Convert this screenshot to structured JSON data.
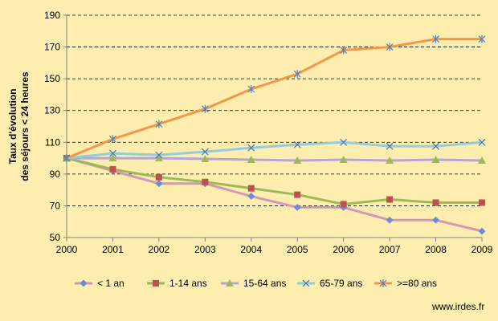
{
  "chart_data": {
    "type": "line",
    "x": [
      "2000",
      "2001",
      "2002",
      "2003",
      "2004",
      "2005",
      "2006",
      "2007",
      "2008",
      "2009"
    ],
    "ylabel_lines": [
      "Taux d'évolution",
      "des séjours < 24 heures"
    ],
    "xlabel": "",
    "ylim": [
      50,
      190
    ],
    "yticks": [
      50,
      70,
      90,
      110,
      130,
      150,
      170,
      190
    ],
    "grid": "horizontal dashed",
    "legend_position": "bottom",
    "series": [
      {
        "name": "< 1 an",
        "color": "#6a8fd6",
        "line_color": "#d497b6",
        "marker": "diamond",
        "values": [
          100,
          92,
          84,
          84,
          76,
          69,
          69,
          61,
          61,
          54
        ]
      },
      {
        "name": "1-14 ans",
        "color": "#c0504d",
        "line_color": "#9bbb59",
        "marker": "square",
        "values": [
          100,
          93,
          88,
          85,
          81,
          77,
          71,
          74,
          72,
          72
        ]
      },
      {
        "name": "15-64 ans",
        "color": "#9bbb59",
        "line_color": "#b9a4d6",
        "marker": "triangle",
        "values": [
          100,
          100,
          100,
          99.5,
          99,
          98.5,
          99,
          98.5,
          99,
          98.5
        ]
      },
      {
        "name": "65-79 ans",
        "color": "#4f6fb4",
        "line_color": "#92cddc",
        "marker": "x",
        "values": [
          100,
          103,
          102,
          104,
          106.5,
          108.5,
          110,
          107.5,
          107.5,
          110
        ]
      },
      {
        "name": ">=80 ans",
        "color": "#4f81bd",
        "line_color": "#f79646",
        "marker": "star",
        "values": [
          100,
          112,
          121.5,
          131,
          143.5,
          153,
          168,
          170,
          175,
          175
        ]
      }
    ]
  },
  "source": "www.irdes.fr"
}
